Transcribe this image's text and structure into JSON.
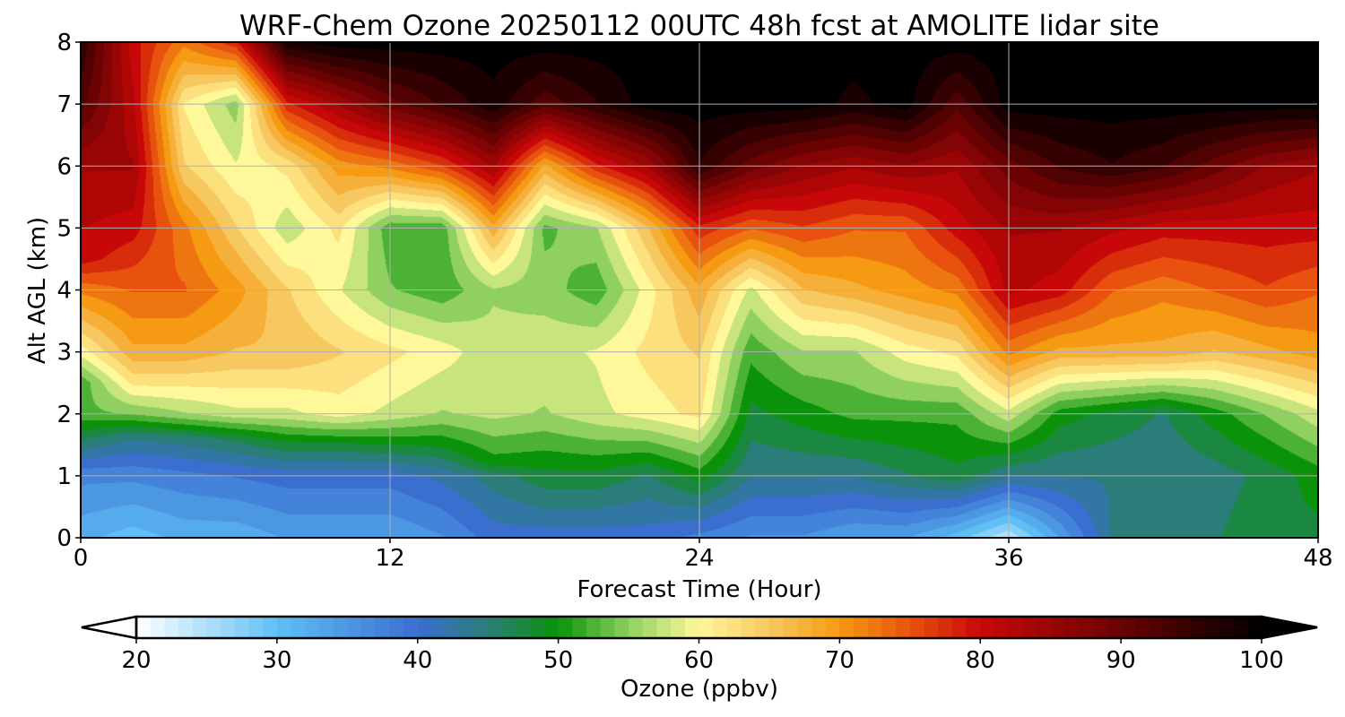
{
  "chart_data": {
    "type": "heatmap",
    "title": "WRF-Chem Ozone  20250112 00UTC 48h fcst at AMOLITE lidar site",
    "xlabel": "Forecast Time (Hour)",
    "ylabel": "Alt AGL (km)",
    "xlim": [
      0,
      48
    ],
    "ylim": [
      0,
      8
    ],
    "x_ticks": [
      0,
      12,
      24,
      36,
      48
    ],
    "y_ticks": [
      0,
      1,
      2,
      3,
      4,
      5,
      6,
      7,
      8
    ],
    "grid": true,
    "colorbar": {
      "label": "Ozone  (ppbv)",
      "range": [
        20,
        100
      ],
      "ticks": [
        20,
        30,
        40,
        50,
        60,
        70,
        80,
        90,
        100
      ],
      "extend": "both",
      "colors": [
        {
          "value": 20,
          "color": "#ffffff"
        },
        {
          "value": 30,
          "color": "#5fbff5"
        },
        {
          "value": 40,
          "color": "#3a6fd0"
        },
        {
          "value": 45,
          "color": "#2a7d78"
        },
        {
          "value": 50,
          "color": "#0a930a"
        },
        {
          "value": 55,
          "color": "#8fd060"
        },
        {
          "value": 60,
          "color": "#fff89a"
        },
        {
          "value": 65,
          "color": "#f7c760"
        },
        {
          "value": 70,
          "color": "#f59a12"
        },
        {
          "value": 75,
          "color": "#e8520e"
        },
        {
          "value": 80,
          "color": "#c80808"
        },
        {
          "value": 90,
          "color": "#6a0202"
        },
        {
          "value": 100,
          "color": "#000000"
        }
      ]
    },
    "z_profiles": [
      {
        "hour": 0,
        "values": [
          [
            0,
            32
          ],
          [
            1,
            37
          ],
          [
            1.5,
            45
          ],
          [
            2,
            53
          ],
          [
            2.5,
            52
          ],
          [
            3,
            60
          ],
          [
            4,
            72
          ],
          [
            4.5,
            80
          ],
          [
            6,
            84
          ],
          [
            7,
            92
          ],
          [
            8,
            96
          ]
        ]
      },
      {
        "hour": 2,
        "values": [
          [
            0,
            30
          ],
          [
            1,
            37
          ],
          [
            1.6,
            44
          ],
          [
            2,
            54
          ],
          [
            2.5,
            62
          ],
          [
            3,
            68
          ],
          [
            4,
            74
          ],
          [
            5,
            80
          ],
          [
            6,
            84
          ],
          [
            7,
            82
          ],
          [
            8,
            80
          ]
        ]
      },
      {
        "hour": 4,
        "values": [
          [
            0,
            32
          ],
          [
            1,
            38
          ],
          [
            1.6,
            45
          ],
          [
            2,
            56
          ],
          [
            2.5,
            62
          ],
          [
            3,
            68
          ],
          [
            4,
            74
          ],
          [
            5,
            72
          ],
          [
            6,
            64
          ],
          [
            7,
            61
          ],
          [
            8,
            72
          ]
        ]
      },
      {
        "hour": 6,
        "values": [
          [
            0,
            32
          ],
          [
            1,
            39
          ],
          [
            1.6,
            47
          ],
          [
            2,
            58
          ],
          [
            2.5,
            62
          ],
          [
            3,
            66
          ],
          [
            4,
            70
          ],
          [
            5,
            64
          ],
          [
            6,
            59
          ],
          [
            7,
            55
          ],
          [
            8,
            78
          ]
        ]
      },
      {
        "hour": 8,
        "values": [
          [
            0,
            34
          ],
          [
            1,
            40
          ],
          [
            1.5,
            48
          ],
          [
            2,
            58
          ],
          [
            2.5,
            62
          ],
          [
            3,
            66
          ],
          [
            4,
            64
          ],
          [
            5,
            57
          ],
          [
            6,
            62
          ],
          [
            7,
            78
          ],
          [
            8,
            98
          ]
        ]
      },
      {
        "hour": 10,
        "values": [
          [
            0,
            34
          ],
          [
            1,
            40
          ],
          [
            1.5,
            48
          ],
          [
            2,
            60
          ],
          [
            3,
            64
          ],
          [
            4,
            59
          ],
          [
            5,
            62
          ],
          [
            6,
            70
          ],
          [
            7,
            84
          ],
          [
            8,
            100
          ]
        ]
      },
      {
        "hour": 12,
        "values": [
          [
            0,
            34
          ],
          [
            1,
            40
          ],
          [
            1.4,
            47
          ],
          [
            2,
            58
          ],
          [
            3,
            62
          ],
          [
            4,
            54
          ],
          [
            5,
            52
          ],
          [
            6,
            72
          ],
          [
            7,
            90
          ],
          [
            8,
            100
          ]
        ]
      },
      {
        "hour": 14,
        "values": [
          [
            0,
            36
          ],
          [
            1,
            42
          ],
          [
            1.4,
            48
          ],
          [
            2,
            56
          ],
          [
            3,
            60
          ],
          [
            4,
            52
          ],
          [
            5,
            52
          ],
          [
            6,
            76
          ],
          [
            7,
            94
          ],
          [
            8,
            100
          ]
        ]
      },
      {
        "hour": 16,
        "values": [
          [
            0,
            40
          ],
          [
            1,
            45
          ],
          [
            1.2,
            50
          ],
          [
            2,
            57
          ],
          [
            3,
            57
          ],
          [
            4,
            56
          ],
          [
            5,
            68
          ],
          [
            6,
            84
          ],
          [
            7,
            98
          ],
          [
            8,
            100
          ]
        ]
      },
      {
        "hour": 18,
        "values": [
          [
            0,
            40
          ],
          [
            1,
            48
          ],
          [
            2,
            56
          ],
          [
            3,
            58
          ],
          [
            4,
            55
          ],
          [
            5,
            53
          ],
          [
            6,
            68
          ],
          [
            7,
            92
          ],
          [
            8,
            100
          ]
        ]
      },
      {
        "hour": 20,
        "values": [
          [
            0,
            40
          ],
          [
            1,
            48
          ],
          [
            2,
            58
          ],
          [
            3,
            59
          ],
          [
            4,
            52
          ],
          [
            5,
            56
          ],
          [
            6,
            78
          ],
          [
            7,
            96
          ],
          [
            8,
            100
          ]
        ]
      },
      {
        "hour": 22,
        "values": [
          [
            0,
            40
          ],
          [
            1,
            46
          ],
          [
            2,
            60
          ],
          [
            3,
            62
          ],
          [
            4,
            60
          ],
          [
            5,
            66
          ],
          [
            6,
            84
          ],
          [
            7,
            100
          ],
          [
            8,
            100
          ]
        ]
      },
      {
        "hour": 24,
        "values": [
          [
            0,
            38
          ],
          [
            1,
            50
          ],
          [
            2,
            62
          ],
          [
            3,
            64
          ],
          [
            4,
            68
          ],
          [
            5,
            78
          ],
          [
            6,
            96
          ],
          [
            7,
            100
          ],
          [
            8,
            100
          ]
        ]
      },
      {
        "hour": 26,
        "values": [
          [
            0,
            36
          ],
          [
            1,
            44
          ],
          [
            2,
            48
          ],
          [
            3,
            52
          ],
          [
            4,
            58
          ],
          [
            5,
            74
          ],
          [
            6,
            90
          ],
          [
            7,
            100
          ],
          [
            8,
            100
          ]
        ]
      },
      {
        "hour": 28,
        "values": [
          [
            0,
            36
          ],
          [
            1,
            44
          ],
          [
            2,
            50
          ],
          [
            3,
            56
          ],
          [
            4,
            66
          ],
          [
            5,
            76
          ],
          [
            6,
            86
          ],
          [
            7,
            100
          ],
          [
            8,
            100
          ]
        ]
      },
      {
        "hour": 30,
        "values": [
          [
            0,
            34
          ],
          [
            1,
            44
          ],
          [
            2,
            52
          ],
          [
            3,
            56
          ],
          [
            4,
            68
          ],
          [
            5,
            74
          ],
          [
            6,
            84
          ],
          [
            7,
            98
          ],
          [
            8,
            100
          ]
        ]
      },
      {
        "hour": 32,
        "values": [
          [
            0,
            34
          ],
          [
            1,
            46
          ],
          [
            2,
            52
          ],
          [
            3,
            60
          ],
          [
            4,
            70
          ],
          [
            5,
            74
          ],
          [
            6,
            86
          ],
          [
            7,
            100
          ],
          [
            8,
            100
          ]
        ]
      },
      {
        "hour": 34,
        "values": [
          [
            0,
            30
          ],
          [
            1,
            48
          ],
          [
            2,
            52
          ],
          [
            3,
            62
          ],
          [
            4,
            72
          ],
          [
            5,
            80
          ],
          [
            6,
            84
          ],
          [
            7,
            92
          ],
          [
            8,
            100
          ]
        ]
      },
      {
        "hour": 36,
        "values": [
          [
            0,
            24
          ],
          [
            1,
            44
          ],
          [
            2,
            58
          ],
          [
            3,
            72
          ],
          [
            4,
            82
          ],
          [
            5,
            84
          ],
          [
            6,
            90
          ],
          [
            7,
            100
          ],
          [
            8,
            100
          ]
        ]
      },
      {
        "hour": 38,
        "values": [
          [
            0,
            34
          ],
          [
            1,
            44
          ],
          [
            2,
            50
          ],
          [
            3,
            68
          ],
          [
            4,
            80
          ],
          [
            5,
            84
          ],
          [
            6,
            94
          ],
          [
            7,
            100
          ],
          [
            8,
            100
          ]
        ]
      },
      {
        "hour": 40,
        "values": [
          [
            0,
            44
          ],
          [
            1,
            44
          ],
          [
            2,
            48
          ],
          [
            3,
            68
          ],
          [
            4,
            74
          ],
          [
            5,
            82
          ],
          [
            6,
            96
          ],
          [
            7,
            100
          ],
          [
            8,
            100
          ]
        ]
      },
      {
        "hour": 42,
        "values": [
          [
            0,
            44
          ],
          [
            1,
            44
          ],
          [
            2,
            46
          ],
          [
            3,
            68
          ],
          [
            4,
            72
          ],
          [
            5,
            80
          ],
          [
            6,
            94
          ],
          [
            7,
            100
          ],
          [
            8,
            100
          ]
        ]
      },
      {
        "hour": 44,
        "values": [
          [
            0,
            46
          ],
          [
            1,
            45
          ],
          [
            2,
            50
          ],
          [
            3,
            66
          ],
          [
            4,
            74
          ],
          [
            5,
            80
          ],
          [
            6,
            90
          ],
          [
            7,
            100
          ],
          [
            8,
            100
          ]
        ]
      },
      {
        "hour": 46,
        "values": [
          [
            0,
            48
          ],
          [
            1,
            47
          ],
          [
            2,
            54
          ],
          [
            3,
            68
          ],
          [
            4,
            76
          ],
          [
            5,
            80
          ],
          [
            6,
            86
          ],
          [
            7,
            100
          ],
          [
            8,
            100
          ]
        ]
      },
      {
        "hour": 48,
        "values": [
          [
            0,
            48
          ],
          [
            1,
            50
          ],
          [
            2,
            58
          ],
          [
            3,
            70
          ],
          [
            4,
            74
          ],
          [
            5,
            80
          ],
          [
            6,
            84
          ],
          [
            7,
            100
          ],
          [
            8,
            100
          ]
        ]
      }
    ]
  }
}
